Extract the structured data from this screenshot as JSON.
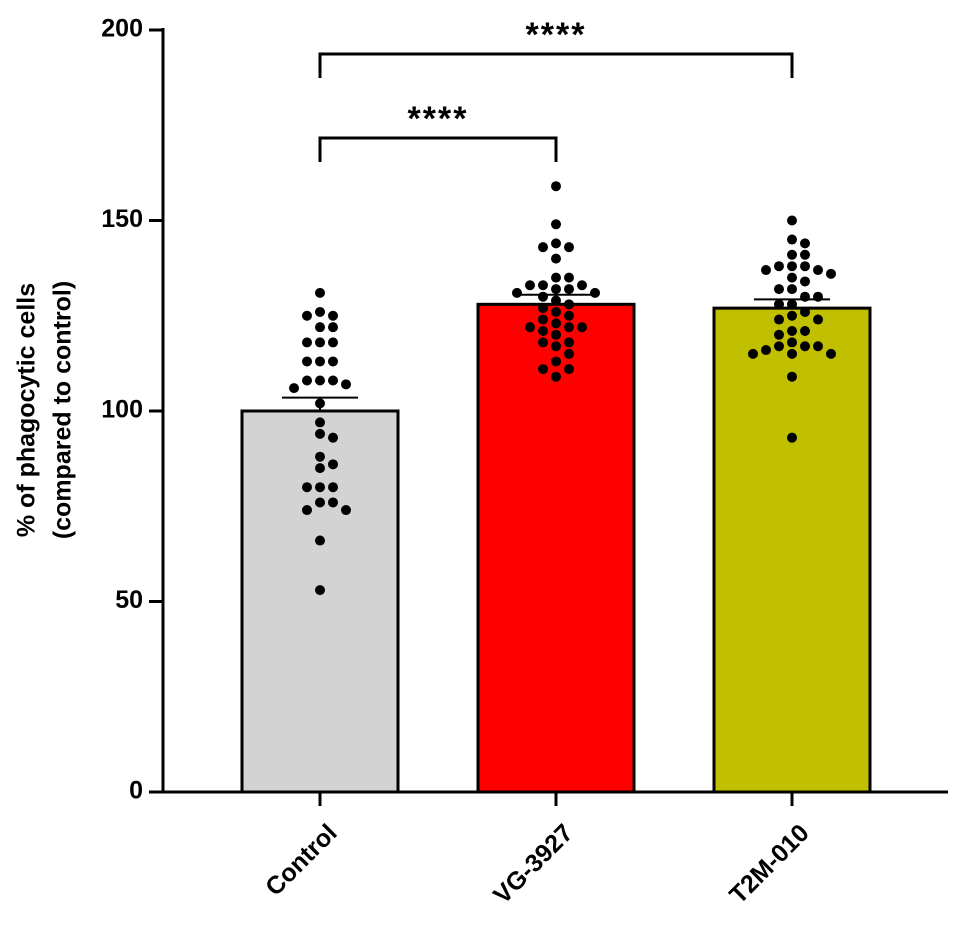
{
  "chart_data": {
    "type": "bar",
    "ylabel_line1": "% of phagocytic cells",
    "ylabel_line2": "(compared to control)",
    "xlabel": "",
    "ylim": [
      0,
      200
    ],
    "yticks": [
      0,
      50,
      100,
      150,
      200
    ],
    "categories": [
      "Control",
      "VG-3927",
      "T2M-010"
    ],
    "colors": [
      "#d3d3d3",
      "#ff0000",
      "#c0bf00"
    ],
    "means": [
      100,
      128,
      127
    ],
    "sem": [
      3.5,
      2.5,
      2.3
    ],
    "points": [
      [
        131,
        126,
        125,
        125,
        122,
        122,
        118,
        118,
        118,
        113,
        113,
        113,
        108,
        108,
        108,
        107,
        106,
        102,
        97,
        94,
        93,
        88,
        86,
        85,
        80,
        80,
        80,
        76,
        76,
        74,
        74,
        66,
        53
      ],
      [
        159,
        149,
        144,
        143,
        143,
        140,
        135,
        135,
        133,
        133,
        133,
        132,
        132,
        131,
        131,
        130,
        129,
        128,
        127,
        126,
        125,
        124,
        123,
        122,
        122,
        122,
        121,
        120,
        118,
        118,
        117,
        115,
        113,
        111,
        111,
        109
      ],
      [
        150,
        145,
        144,
        141,
        141,
        138,
        138,
        138,
        137,
        137,
        136,
        135,
        134,
        132,
        132,
        130,
        130,
        128,
        128,
        126,
        125,
        124,
        124,
        121,
        121,
        120,
        118,
        117,
        117,
        117,
        116,
        115,
        115,
        115,
        109,
        93
      ]
    ],
    "comparisons": [
      {
        "from": 0,
        "to": 1,
        "label": "****",
        "level": 0
      },
      {
        "from": 0,
        "to": 2,
        "label": "****",
        "level": 1
      }
    ]
  }
}
